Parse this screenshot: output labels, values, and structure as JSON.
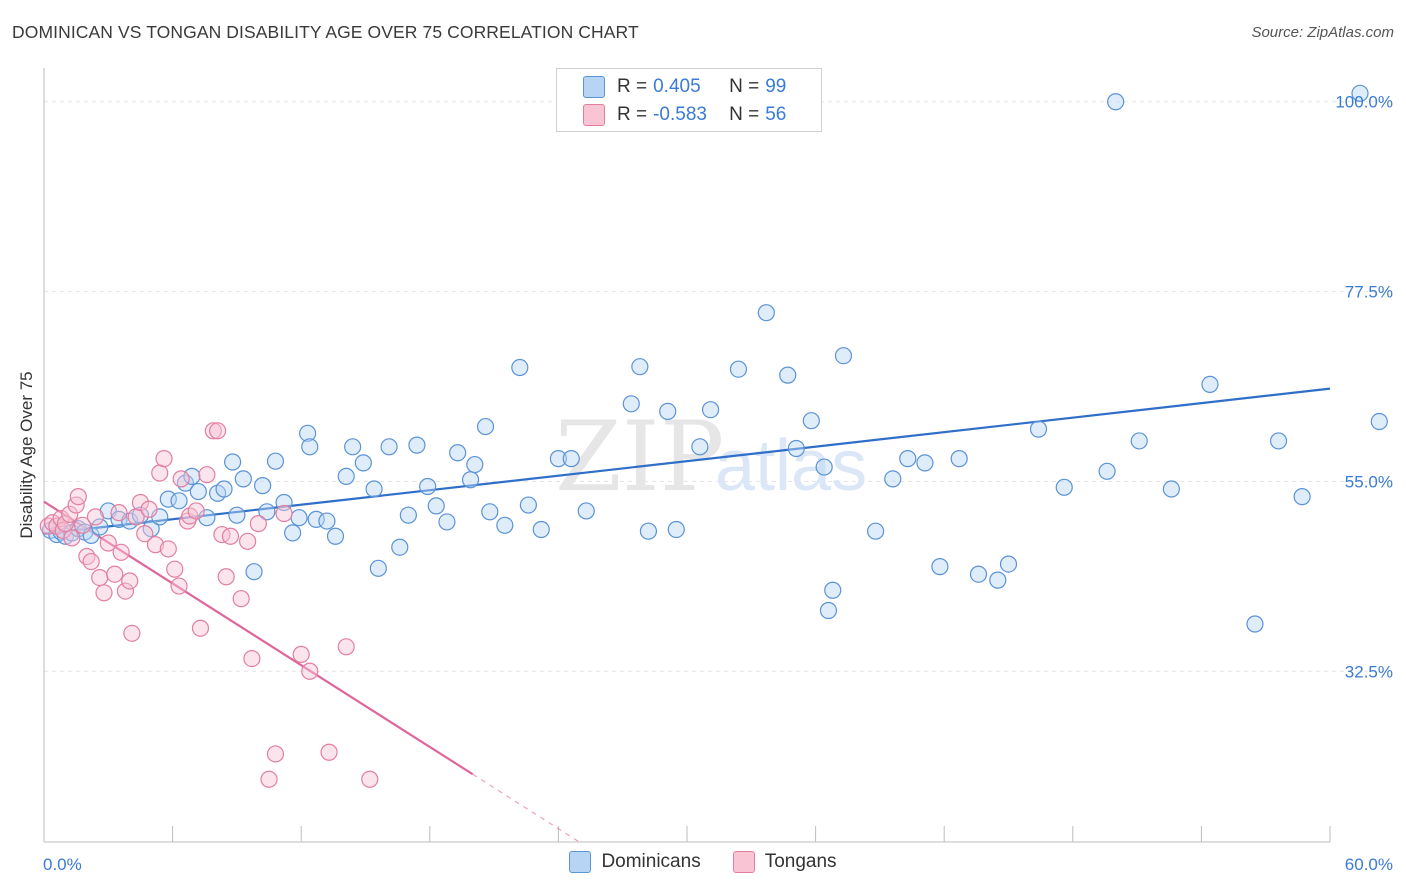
{
  "title": "DOMINICAN VS TONGAN DISABILITY AGE OVER 75 CORRELATION CHART",
  "source": "Source: ZipAtlas.com",
  "watermark": {
    "zip": "ZIP",
    "atlas": "atlas"
  },
  "legend": {
    "r_label": "R =",
    "n_label": "N =",
    "rows": [
      {
        "r": "0.405",
        "n": "99",
        "color": "#b8d4f5"
      },
      {
        "r": "-0.583",
        "n": "56",
        "color": "#f9c4d4"
      }
    ]
  },
  "bottom_legend": [
    {
      "label": "Dominicans",
      "color": "#b8d4f5"
    },
    {
      "label": "Tongans",
      "color": "#f9c4d4"
    }
  ],
  "chart_data": {
    "type": "scatter",
    "title": "DOMINICAN VS TONGAN DISABILITY AGE OVER 75 CORRELATION CHART",
    "ylabel": "Disability Age Over 75",
    "xlim": [
      0,
      60
    ],
    "ylim": [
      12.5,
      104
    ],
    "x_ticks": [
      "0.0%",
      "60.0%"
    ],
    "y_ticks": [
      {
        "value": 32.5,
        "label": "32.5%"
      },
      {
        "value": 55.0,
        "label": "55.0%"
      },
      {
        "value": 77.5,
        "label": "77.5%"
      },
      {
        "value": 100.0,
        "label": "100.0%"
      }
    ],
    "grid": true,
    "colors": {
      "dominicans_fill": "#b8d4f5",
      "dominicans_stroke": "#5b93d6",
      "dominicans_line": "#2f6fc9",
      "tongans_fill": "#f9c4d4",
      "tongans_stroke": "#e27fa0",
      "tongans_line": "#e0659a"
    },
    "series": [
      {
        "name": "Dominicans",
        "trend": {
          "x": [
            0,
            60
          ],
          "y": [
            48.8,
            66.0
          ]
        },
        "points": [
          [
            0.3,
            49.2
          ],
          [
            0.6,
            48.7
          ],
          [
            0.8,
            49.0
          ],
          [
            1.0,
            48.5
          ],
          [
            1.3,
            48.9
          ],
          [
            1.6,
            49.4
          ],
          [
            1.9,
            49.0
          ],
          [
            2.2,
            48.6
          ],
          [
            2.6,
            49.6
          ],
          [
            3.0,
            51.5
          ],
          [
            3.5,
            50.5
          ],
          [
            4.0,
            50.3
          ],
          [
            4.5,
            51.0
          ],
          [
            5.0,
            49.4
          ],
          [
            5.4,
            50.8
          ],
          [
            5.8,
            52.9
          ],
          [
            6.3,
            52.7
          ],
          [
            6.6,
            54.8
          ],
          [
            6.9,
            55.6
          ],
          [
            7.2,
            53.8
          ],
          [
            7.6,
            50.7
          ],
          [
            8.1,
            53.6
          ],
          [
            8.4,
            54.1
          ],
          [
            8.8,
            57.3
          ],
          [
            9.0,
            51.0
          ],
          [
            9.3,
            55.3
          ],
          [
            9.8,
            44.3
          ],
          [
            10.2,
            54.5
          ],
          [
            10.4,
            51.4
          ],
          [
            10.8,
            57.4
          ],
          [
            11.2,
            52.5
          ],
          [
            11.6,
            48.9
          ],
          [
            11.9,
            50.7
          ],
          [
            12.3,
            60.7
          ],
          [
            12.4,
            59.1
          ],
          [
            12.7,
            50.5
          ],
          [
            13.2,
            50.3
          ],
          [
            13.6,
            48.5
          ],
          [
            14.1,
            55.6
          ],
          [
            14.4,
            59.1
          ],
          [
            14.9,
            57.2
          ],
          [
            15.4,
            54.1
          ],
          [
            15.6,
            44.7
          ],
          [
            16.1,
            59.1
          ],
          [
            16.6,
            47.2
          ],
          [
            17.0,
            51.0
          ],
          [
            17.4,
            59.3
          ],
          [
            17.9,
            54.4
          ],
          [
            18.3,
            52.1
          ],
          [
            18.8,
            50.2
          ],
          [
            19.3,
            58.4
          ],
          [
            19.9,
            55.2
          ],
          [
            20.1,
            57.0
          ],
          [
            20.6,
            61.5
          ],
          [
            20.8,
            51.4
          ],
          [
            21.5,
            49.8
          ],
          [
            22.2,
            68.5
          ],
          [
            22.6,
            52.2
          ],
          [
            23.2,
            49.3
          ],
          [
            24.0,
            57.7
          ],
          [
            24.6,
            57.7
          ],
          [
            25.3,
            51.5
          ],
          [
            27.4,
            64.2
          ],
          [
            27.8,
            68.6
          ],
          [
            28.2,
            49.1
          ],
          [
            29.1,
            63.3
          ],
          [
            29.5,
            49.3
          ],
          [
            30.6,
            59.1
          ],
          [
            31.1,
            63.5
          ],
          [
            32.4,
            68.3
          ],
          [
            33.7,
            75.0
          ],
          [
            34.7,
            67.6
          ],
          [
            35.1,
            58.9
          ],
          [
            35.8,
            62.2
          ],
          [
            36.4,
            56.7
          ],
          [
            36.6,
            39.7
          ],
          [
            36.8,
            42.1
          ],
          [
            37.3,
            69.9
          ],
          [
            38.8,
            49.1
          ],
          [
            39.6,
            55.3
          ],
          [
            40.3,
            57.7
          ],
          [
            41.1,
            57.2
          ],
          [
            41.8,
            44.9
          ],
          [
            42.7,
            57.7
          ],
          [
            43.6,
            44.0
          ],
          [
            44.5,
            43.3
          ],
          [
            45.0,
            45.2
          ],
          [
            46.4,
            61.2
          ],
          [
            47.6,
            54.3
          ],
          [
            49.6,
            56.2
          ],
          [
            50.0,
            100.0
          ],
          [
            51.1,
            59.8
          ],
          [
            52.6,
            54.1
          ],
          [
            54.4,
            66.5
          ],
          [
            56.5,
            38.1
          ],
          [
            57.6,
            59.8
          ],
          [
            58.7,
            53.2
          ],
          [
            61.4,
            101.0
          ],
          [
            62.3,
            62.1
          ]
        ]
      },
      {
        "name": "Tongans",
        "trend": {
          "x": [
            0,
            20
          ],
          "y": [
            52.6,
            20.3
          ]
        },
        "points": [
          [
            0.2,
            49.7
          ],
          [
            0.4,
            50.1
          ],
          [
            0.6,
            49.7
          ],
          [
            0.8,
            50.6
          ],
          [
            0.9,
            49.2
          ],
          [
            1.0,
            50.0
          ],
          [
            1.2,
            51.1
          ],
          [
            1.3,
            48.3
          ],
          [
            1.5,
            52.2
          ],
          [
            1.6,
            53.2
          ],
          [
            1.8,
            49.8
          ],
          [
            2.0,
            46.1
          ],
          [
            2.2,
            45.5
          ],
          [
            2.4,
            50.8
          ],
          [
            2.6,
            43.6
          ],
          [
            2.8,
            41.8
          ],
          [
            3.0,
            47.7
          ],
          [
            3.3,
            44.0
          ],
          [
            3.5,
            51.3
          ],
          [
            3.6,
            46.6
          ],
          [
            3.8,
            42.0
          ],
          [
            4.0,
            43.2
          ],
          [
            4.1,
            37.0
          ],
          [
            4.3,
            50.8
          ],
          [
            4.5,
            52.5
          ],
          [
            4.7,
            48.8
          ],
          [
            4.9,
            51.7
          ],
          [
            5.2,
            47.5
          ],
          [
            5.4,
            56.0
          ],
          [
            5.6,
            57.7
          ],
          [
            5.8,
            47.0
          ],
          [
            6.1,
            44.6
          ],
          [
            6.3,
            42.6
          ],
          [
            6.4,
            55.3
          ],
          [
            6.7,
            50.3
          ],
          [
            6.8,
            50.9
          ],
          [
            7.1,
            51.5
          ],
          [
            7.3,
            37.6
          ],
          [
            7.6,
            55.8
          ],
          [
            7.9,
            61.0
          ],
          [
            8.1,
            61.0
          ],
          [
            8.3,
            48.7
          ],
          [
            8.5,
            43.7
          ],
          [
            8.7,
            48.5
          ],
          [
            9.2,
            41.1
          ],
          [
            9.5,
            47.9
          ],
          [
            9.7,
            34.0
          ],
          [
            10.0,
            50.0
          ],
          [
            10.5,
            19.7
          ],
          [
            10.8,
            22.7
          ],
          [
            11.2,
            51.2
          ],
          [
            12.0,
            34.5
          ],
          [
            12.4,
            32.5
          ],
          [
            13.3,
            22.9
          ],
          [
            14.1,
            35.4
          ],
          [
            15.2,
            19.7
          ]
        ]
      }
    ]
  },
  "x_axis_labels": {
    "left": "0.0%",
    "right": "60.0%"
  }
}
